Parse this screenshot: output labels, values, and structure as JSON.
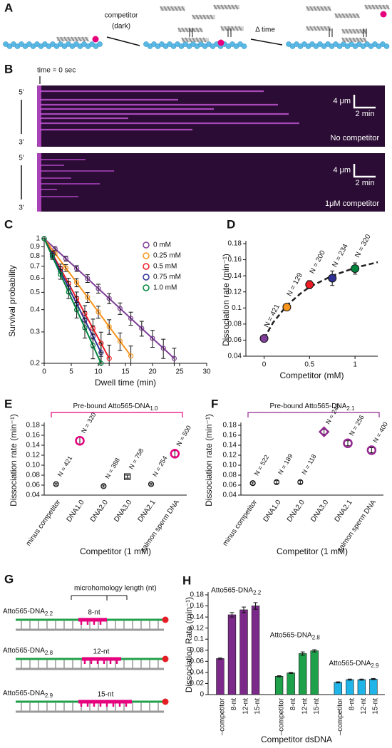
{
  "panel_a": {
    "label": "A",
    "competitor": [
      "competitor",
      "(dark)"
    ],
    "delta_time": "Δ time"
  },
  "panel_b": {
    "label": "B",
    "time_zero": "time = 0 sec",
    "kymographs": [
      {
        "end5": "5'",
        "end3": "3'",
        "scale_um": "4 μm",
        "scale_min": "2 min",
        "caption": "No competitor"
      },
      {
        "end5": "5'",
        "end3": "3'",
        "scale_um": "4 μm",
        "scale_min": "2 min",
        "caption": "1μM competitor"
      }
    ]
  },
  "panel_g": {
    "label": "G",
    "header": "microhomology length (nt)",
    "constructs": [
      {
        "name": "Atto565-DNA",
        "sub": "2.2",
        "length": "8-nt"
      },
      {
        "name": "Atto565-DNA",
        "sub": "2.8",
        "length": "12-nt"
      },
      {
        "name": "Atto565-DNA",
        "sub": "2.9",
        "length": "15-nt"
      }
    ]
  },
  "chart_data": [
    {
      "panel": "C",
      "type": "line",
      "y_scale": "log",
      "xlabel": "Dwell time (min)",
      "ylabel": "Survival probability",
      "xlim": [
        0,
        30
      ],
      "xticks": [
        0,
        5,
        10,
        15,
        20,
        25,
        30
      ],
      "ylim": [
        0.2,
        1
      ],
      "yticks": [
        1,
        0.9,
        0.8,
        0.7,
        0.6,
        0.5,
        0.4,
        0.3,
        0.2
      ],
      "legend": "top-right",
      "series": [
        {
          "name": "0 mM",
          "color": "#7f3f98",
          "x": [
            0,
            2,
            4,
            6,
            8,
            10,
            12,
            14,
            16,
            18,
            20,
            22,
            24
          ],
          "values": [
            1,
            0.879,
            0.773,
            0.68,
            0.598,
            0.525,
            0.462,
            0.406,
            0.357,
            0.314,
            0.276,
            0.243,
            0.213
          ],
          "errors": [
            0,
            0.02,
            0.025,
            0.025,
            0.03,
            0.03,
            0.03,
            0.03,
            0.03,
            0.03,
            0.03,
            0.03,
            0.03
          ]
        },
        {
          "name": "0.25 mM",
          "color": "#f7941d",
          "x": [
            0,
            2,
            4,
            6,
            8,
            10,
            12,
            14,
            16
          ],
          "values": [
            1,
            0.827,
            0.685,
            0.567,
            0.469,
            0.388,
            0.321,
            0.266,
            0.22
          ],
          "errors": [
            0,
            0.02,
            0.03,
            0.03,
            0.03,
            0.03,
            0.03,
            0.03,
            0.03
          ]
        },
        {
          "name": "0.5 mM",
          "color": "#ed1c24",
          "x": [
            0,
            1.5,
            3,
            4.5,
            6,
            7.5,
            9,
            10.5,
            12
          ],
          "values": [
            1,
            0.824,
            0.68,
            0.56,
            0.462,
            0.381,
            0.314,
            0.259,
            0.213
          ],
          "errors": [
            0,
            0.03,
            0.04,
            0.04,
            0.04,
            0.04,
            0.04,
            0.04,
            0.04
          ]
        },
        {
          "name": "0.75 mM",
          "color": "#2e3192",
          "x": [
            0,
            1.5,
            3,
            4.5,
            6,
            7.5,
            9,
            10.5
          ],
          "values": [
            1,
            0.811,
            0.657,
            0.533,
            0.432,
            0.35,
            0.284,
            0.23
          ],
          "errors": [
            0,
            0.03,
            0.04,
            0.04,
            0.04,
            0.04,
            0.04,
            0.03
          ]
        },
        {
          "name": "1.0 mM",
          "color": "#00843d",
          "x": [
            0,
            1.5,
            3,
            4.5,
            6,
            7.5,
            9,
            10.5
          ],
          "values": [
            1,
            0.795,
            0.632,
            0.502,
            0.399,
            0.317,
            0.252,
            0.2
          ],
          "errors": [
            0,
            0.03,
            0.04,
            0.04,
            0.04,
            0.04,
            0.04,
            0.03
          ]
        }
      ]
    },
    {
      "panel": "D",
      "type": "scatter",
      "xlabel": "Competitor (mM)",
      "ylabel": "Dissociation rate (min⁻¹)",
      "xlim": [
        -0.2,
        1.25
      ],
      "xticks": [
        0,
        0.5,
        1
      ],
      "ylim": [
        0.04,
        0.18
      ],
      "yticks": [
        0.04,
        0.06,
        0.08,
        0.1,
        0.12,
        0.14,
        0.16,
        0.18
      ],
      "x": [
        0,
        0.25,
        0.5,
        0.75,
        1
      ],
      "values": [
        0.062,
        0.101,
        0.129,
        0.137,
        0.149
      ],
      "errors": [
        0.002,
        0.004,
        0.005,
        0.009,
        0.007
      ],
      "colors": [
        "#7f3f98",
        "#f7941d",
        "#ed1c24",
        "#2e3192",
        "#00843d"
      ],
      "annotations": [
        "N = 421",
        "N = 129",
        "N = 200",
        "N = 234",
        "N = 320"
      ],
      "fit": {
        "x": [
          0,
          0.1,
          0.25,
          0.4,
          0.5,
          0.75,
          1,
          1.25
        ],
        "values": [
          0.062,
          0.082,
          0.103,
          0.118,
          0.126,
          0.14,
          0.15,
          0.157
        ],
        "color": "#231f20",
        "style": "dashed"
      }
    },
    {
      "panel": "E",
      "type": "scatter",
      "title": "Pre-bound Atto565-DNA",
      "title_sub": "1.0",
      "title_color": "#e6007e",
      "xlabel": "Competitor (1 mM)",
      "ylabel": "Dissociation rate (min⁻¹)",
      "ylim": [
        0.04,
        0.18
      ],
      "yticks": [
        0.04,
        0.06,
        0.08,
        {
          "value": 0.1,
          "label": "0.10"
        },
        0.12,
        0.14,
        0.16,
        0.18
      ],
      "categories": [
        "minus competitor",
        "DNA1.0",
        "DNA2.0",
        "DNA3.0",
        "DNA2.1",
        "salmon sperm DNA"
      ],
      "category_colors": [
        "#111111",
        "#e6007e",
        "#111111",
        "#111111",
        "#111111",
        "#e6007e"
      ],
      "markers": [
        "circle",
        "circle",
        "circle",
        "square",
        "circle",
        "circle"
      ],
      "values": [
        0.062,
        0.149,
        0.058,
        0.077,
        0.062,
        0.123
      ],
      "errors": [
        0.002,
        0.007,
        0.002,
        0.003,
        0.002,
        0.006
      ],
      "annotations": [
        "N = 421",
        "N = 320",
        "N = 388",
        "N = 758",
        "N = 254",
        "N = 500"
      ]
    },
    {
      "panel": "F",
      "type": "scatter",
      "title": "Pre-bound Atto565-DNA",
      "title_sub": "2.1",
      "title_color": "#92278f",
      "xlabel": "Competitor (1 mM)",
      "ylabel": "Dissociation rate (min⁻¹)",
      "ylim": [
        0.04,
        0.18
      ],
      "yticks": [
        0.04,
        0.06,
        0.08,
        {
          "value": 0.1,
          "label": "0.10"
        },
        0.12,
        0.14,
        0.16,
        0.18
      ],
      "categories": [
        "minus competitor",
        "DNA1.0",
        "DNA2.0",
        "DNA3.0",
        "DNA2.1",
        "salmon sperm DNA"
      ],
      "category_colors": [
        "#111111",
        "#111111",
        "#111111",
        "#92278f",
        "#92278f",
        "#92278f"
      ],
      "markers": [
        "circle",
        "circle",
        "circle",
        "diamond",
        "circle",
        "circle"
      ],
      "values": [
        0.064,
        0.066,
        0.066,
        0.167,
        0.144,
        0.13
      ],
      "errors": [
        0.002,
        0.003,
        0.003,
        0.005,
        0.005,
        0.005
      ],
      "annotations": [
        "N = 522",
        "N = 189",
        "N = 118",
        "N = 248",
        "N = 256",
        "N = 400"
      ]
    },
    {
      "panel": "H",
      "type": "bar",
      "xlabel": "Competitor dsDNA",
      "ylabel": "Dissociation Rate (min⁻¹)",
      "ylim": [
        0,
        0.18
      ],
      "yticks": [
        0,
        0.02,
        0.04,
        0.06,
        0.08,
        0.1,
        0.12,
        0.14,
        0.16,
        0.18
      ],
      "categories": [
        "–competitor",
        "8-nt",
        "12-nt",
        "15-nt"
      ],
      "series": [
        {
          "name": "Atto565-DNA",
          "name_sub": "2.2",
          "color": "#7b2a8a",
          "values": [
            0.065,
            0.144,
            0.153,
            0.16
          ],
          "errors": [
            0.001,
            0.004,
            0.005,
            0.006
          ]
        },
        {
          "name": "Atto565-DNA",
          "name_sub": "2.8",
          "color": "#1fa04a",
          "values": [
            0.033,
            0.039,
            0.074,
            0.079
          ],
          "errors": [
            0.001,
            0.001,
            0.003,
            0.002
          ]
        },
        {
          "name": "Atto565-DNA",
          "name_sub": "2.9",
          "color": "#1fb5e8",
          "values": [
            0.022,
            0.027,
            0.027,
            0.028
          ],
          "errors": [
            0.001,
            0.001,
            0.001,
            0.001
          ]
        }
      ]
    }
  ]
}
